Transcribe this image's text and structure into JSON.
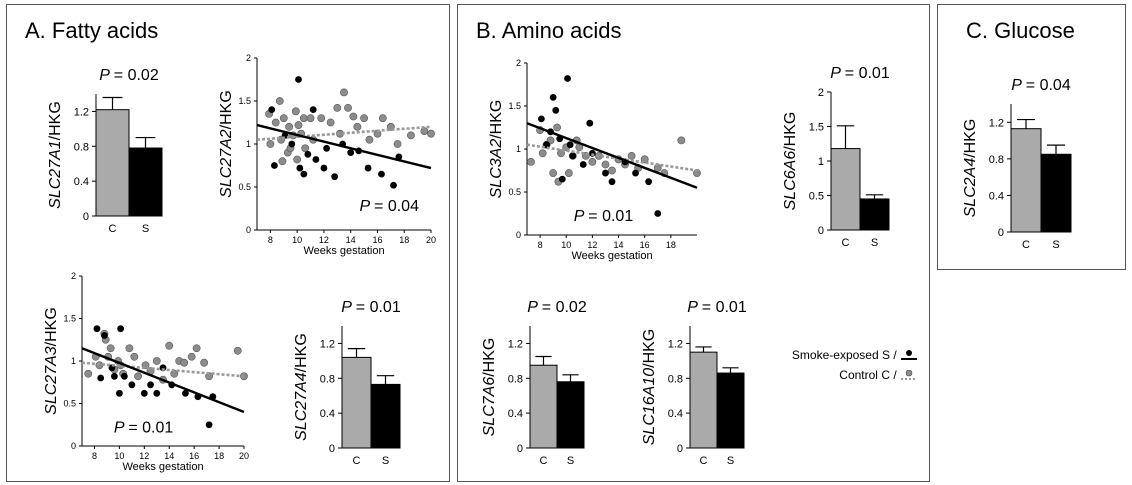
{
  "panels": [
    {
      "letter": "A.",
      "title": "Fatty acids"
    },
    {
      "letter": "B.",
      "title": "Amino acids"
    },
    {
      "letter": "C.",
      "title": "Glucose"
    }
  ],
  "colors": {
    "control": "#aaaaaa",
    "smoke": "#000000",
    "control_point": "#8c8c8c",
    "smoke_point": "#000000",
    "trend_control": "#999999"
  },
  "legend": {
    "smoke": "Smoke-exposed",
    "smoke_code": "S /",
    "control": "Control",
    "control_code": "C /"
  },
  "chart_data": [
    {
      "id": "slc27a1",
      "type": "bar",
      "gene": "SLC27A1",
      "ylabel_suffix": "/HKG",
      "p_label": "P",
      "p_value": "= 0.02",
      "categories": [
        "C",
        "S"
      ],
      "values": [
        1.22,
        0.78
      ],
      "errors": [
        0.14,
        0.12
      ],
      "ylim": [
        0,
        1.4
      ],
      "yticks": [
        0,
        0.4,
        0.8,
        1.2
      ],
      "ytick_labels": [
        "0",
        "0.4",
        "0.8",
        "1.2"
      ]
    },
    {
      "id": "slc27a2",
      "type": "scatter",
      "gene": "SLC27A2",
      "ylabel_suffix": "/HKG",
      "p_label": "P",
      "p_value": "= 0.04",
      "xlabel": "Weeks gestation",
      "xlim": [
        7,
        20
      ],
      "ylim": [
        0,
        2
      ],
      "xticks": [
        8,
        10,
        12,
        14,
        16,
        18,
        20
      ],
      "yticks": [
        0,
        0.5,
        1,
        1.5,
        2
      ],
      "xtick_labels": [
        "8",
        "10",
        "12",
        "14",
        "16",
        "18",
        "20"
      ],
      "ytick_labels": [
        "0",
        "0.5",
        "1",
        "1.5",
        "2"
      ],
      "series": [
        {
          "points": [
            [
              7.9,
              1.35
            ],
            [
              8.0,
              1.0
            ],
            [
              8.4,
              1.25
            ],
            [
              8.7,
              1.5
            ],
            [
              8.8,
              1.05
            ],
            [
              8.9,
              0.8
            ],
            [
              9.0,
              1.3
            ],
            [
              9.3,
              0.9
            ],
            [
              9.4,
              1.2
            ],
            [
              9.5,
              0.95
            ],
            [
              9.7,
              1.1
            ],
            [
              9.9,
              1.38
            ],
            [
              10.0,
              0.82
            ],
            [
              10.1,
              1.22
            ],
            [
              10.3,
              1.12
            ],
            [
              10.5,
              1.3
            ],
            [
              10.6,
              0.95
            ],
            [
              11.0,
              1.3
            ],
            [
              11.2,
              1.05
            ],
            [
              11.8,
              1.3
            ],
            [
              12.5,
              1.25
            ],
            [
              13.0,
              1.42
            ],
            [
              13.2,
              1.12
            ],
            [
              13.5,
              1.6
            ],
            [
              13.8,
              1.42
            ],
            [
              14.2,
              1.32
            ],
            [
              14.5,
              1.2
            ],
            [
              15.0,
              1.3
            ],
            [
              15.4,
              1.05
            ],
            [
              16.0,
              1.12
            ],
            [
              16.4,
              1.3
            ],
            [
              17.0,
              1.2
            ],
            [
              17.5,
              1.0
            ],
            [
              18.5,
              1.1
            ],
            [
              19.5,
              1.15
            ],
            [
              20.0,
              1.12
            ]
          ]
        },
        {
          "points": [
            [
              8.1,
              1.4
            ],
            [
              8.3,
              0.75
            ],
            [
              9.1,
              1.1
            ],
            [
              9.6,
              1.0
            ],
            [
              10.1,
              1.75
            ],
            [
              10.2,
              0.72
            ],
            [
              10.5,
              0.65
            ],
            [
              10.8,
              0.88
            ],
            [
              11.2,
              1.4
            ],
            [
              11.4,
              0.82
            ],
            [
              12.0,
              0.72
            ],
            [
              12.2,
              0.95
            ],
            [
              12.8,
              0.62
            ],
            [
              13.4,
              1.0
            ],
            [
              14.0,
              0.9
            ],
            [
              14.6,
              0.92
            ],
            [
              15.3,
              0.72
            ],
            [
              16.3,
              0.65
            ],
            [
              17.2,
              0.52
            ],
            [
              17.6,
              0.85
            ]
          ]
        }
      ],
      "trend_control": [
        [
          7,
          1.05
        ],
        [
          20,
          1.2
        ]
      ],
      "trend_smoke": [
        [
          7,
          1.22
        ],
        [
          20,
          0.72
        ]
      ]
    },
    {
      "id": "slc27a3",
      "type": "scatter",
      "gene": "SLC27A3",
      "ylabel_suffix": "/HKG",
      "p_label": "P",
      "p_value": "= 0.01",
      "xlabel": "Weeks gestation",
      "xlim": [
        7,
        20
      ],
      "ylim": [
        0,
        2
      ],
      "xticks": [
        8,
        10,
        12,
        14,
        16,
        18,
        20
      ],
      "yticks": [
        0,
        0.5,
        1,
        1.5,
        2
      ],
      "xtick_labels": [
        "8",
        "10",
        "12",
        "14",
        "16",
        "18",
        "20"
      ],
      "ytick_labels": [
        "0",
        "0.5",
        "1",
        "1.5",
        "2"
      ],
      "series": [
        {
          "points": [
            [
              7.5,
              0.85
            ],
            [
              8.1,
              1.05
            ],
            [
              8.4,
              0.95
            ],
            [
              8.8,
              1.32
            ],
            [
              8.9,
              1.25
            ],
            [
              9.1,
              1.05
            ],
            [
              9.3,
              1.15
            ],
            [
              9.6,
              0.9
            ],
            [
              9.9,
              1.0
            ],
            [
              10.1,
              0.95
            ],
            [
              10.3,
              0.85
            ],
            [
              10.8,
              1.15
            ],
            [
              11.2,
              1.05
            ],
            [
              11.5,
              0.82
            ],
            [
              12.1,
              0.95
            ],
            [
              12.5,
              0.88
            ],
            [
              13.0,
              1.0
            ],
            [
              13.5,
              0.78
            ],
            [
              14.0,
              1.18
            ],
            [
              14.4,
              0.85
            ],
            [
              14.8,
              1.0
            ],
            [
              15.2,
              0.98
            ],
            [
              15.8,
              1.05
            ],
            [
              16.2,
              1.15
            ],
            [
              16.8,
              0.98
            ],
            [
              17.2,
              0.82
            ],
            [
              19.5,
              1.12
            ],
            [
              20.0,
              0.82
            ]
          ]
        },
        {
          "points": [
            [
              8.2,
              1.38
            ],
            [
              8.5,
              0.8
            ],
            [
              8.8,
              1.3
            ],
            [
              9.4,
              0.92
            ],
            [
              9.6,
              0.82
            ],
            [
              10.0,
              0.62
            ],
            [
              10.1,
              1.38
            ],
            [
              10.4,
              0.82
            ],
            [
              11.0,
              0.72
            ],
            [
              12.0,
              0.62
            ],
            [
              12.5,
              0.72
            ],
            [
              13.0,
              0.62
            ],
            [
              13.5,
              0.92
            ],
            [
              14.2,
              0.72
            ],
            [
              15.3,
              0.62
            ],
            [
              16.3,
              0.58
            ],
            [
              17.2,
              0.25
            ],
            [
              17.5,
              0.58
            ]
          ]
        }
      ],
      "trend_control": [
        [
          7,
          0.98
        ],
        [
          20,
          0.82
        ]
      ],
      "trend_smoke": [
        [
          7,
          1.15
        ],
        [
          20,
          0.4
        ]
      ]
    },
    {
      "id": "slc27a4",
      "type": "bar",
      "gene": "SLC27A4",
      "ylabel_suffix": "/HKG",
      "p_label": "P",
      "p_value": "= 0.01",
      "categories": [
        "C",
        "S"
      ],
      "values": [
        1.04,
        0.73
      ],
      "errors": [
        0.1,
        0.1
      ],
      "ylim": [
        0,
        1.4
      ],
      "yticks": [
        0,
        0.4,
        0.8,
        1.2
      ],
      "ytick_labels": [
        "0",
        "0.4",
        "0.8",
        "1.2"
      ]
    },
    {
      "id": "slc3a2",
      "type": "scatter",
      "gene": "SLC3A2",
      "ylabel_suffix": "/HKG",
      "p_label": "P",
      "p_value": "= 0.01",
      "xlabel": "Weeks gestation",
      "xlim": [
        7,
        20
      ],
      "ylim": [
        0,
        2
      ],
      "xticks": [
        8,
        10,
        12,
        14,
        16,
        18
      ],
      "yticks": [
        0,
        0.5,
        1,
        1.5,
        2
      ],
      "xtick_labels": [
        "8",
        "10",
        "12",
        "14",
        "16",
        "18"
      ],
      "ytick_labels": [
        "0",
        "0.5",
        "1",
        "1.5",
        "2"
      ],
      "series": [
        {
          "points": [
            [
              7.3,
              0.85
            ],
            [
              8.0,
              1.22
            ],
            [
              8.2,
              0.95
            ],
            [
              8.5,
              1.05
            ],
            [
              8.8,
              1.1
            ],
            [
              9.0,
              0.72
            ],
            [
              9.3,
              1.25
            ],
            [
              9.4,
              0.62
            ],
            [
              9.6,
              0.95
            ],
            [
              10.0,
              1.02
            ],
            [
              10.2,
              0.72
            ],
            [
              10.5,
              0.92
            ],
            [
              10.8,
              1.1
            ],
            [
              11.0,
              1.02
            ],
            [
              11.5,
              0.92
            ],
            [
              12.0,
              0.85
            ],
            [
              12.5,
              0.92
            ],
            [
              13.0,
              0.82
            ],
            [
              13.5,
              0.75
            ],
            [
              14.0,
              0.88
            ],
            [
              14.5,
              0.82
            ],
            [
              15.0,
              0.92
            ],
            [
              15.5,
              0.78
            ],
            [
              16.0,
              0.88
            ],
            [
              17.0,
              0.78
            ],
            [
              17.5,
              0.72
            ],
            [
              18.8,
              1.1
            ],
            [
              20.0,
              0.72
            ]
          ]
        },
        {
          "points": [
            [
              8.1,
              1.35
            ],
            [
              8.5,
              1.05
            ],
            [
              8.8,
              1.2
            ],
            [
              9.0,
              1.6
            ],
            [
              9.2,
              1.45
            ],
            [
              9.5,
              1.12
            ],
            [
              9.7,
              0.65
            ],
            [
              10.1,
              1.82
            ],
            [
              10.3,
              1.05
            ],
            [
              10.5,
              0.92
            ],
            [
              11.3,
              0.82
            ],
            [
              11.8,
              1.3
            ],
            [
              12.0,
              0.95
            ],
            [
              13.0,
              0.72
            ],
            [
              13.5,
              0.62
            ],
            [
              14.5,
              0.85
            ],
            [
              15.3,
              0.72
            ],
            [
              16.3,
              0.62
            ],
            [
              17.0,
              0.25
            ]
          ]
        }
      ],
      "trend_control": [
        [
          7,
          1.05
        ],
        [
          20,
          0.75
        ]
      ],
      "trend_smoke": [
        [
          7,
          1.3
        ],
        [
          20,
          0.55
        ]
      ]
    },
    {
      "id": "slc6a6",
      "type": "bar",
      "gene": "SLC6A6",
      "ylabel_suffix": "/HKG",
      "p_label": "P",
      "p_value": "= 0.01",
      "categories": [
        "C",
        "S"
      ],
      "values": [
        1.18,
        0.45
      ],
      "errors": [
        0.33,
        0.06
      ],
      "ylim": [
        0,
        2
      ],
      "yticks": [
        0,
        0.5,
        1,
        1.5,
        2
      ],
      "ytick_labels": [
        "0",
        "0.5",
        "1",
        "1.5",
        "2"
      ]
    },
    {
      "id": "slc7a6",
      "type": "bar",
      "gene": "SLC7A6",
      "ylabel_suffix": "/HKG",
      "p_label": "P",
      "p_value": "= 0.02",
      "categories": [
        "C",
        "S"
      ],
      "values": [
        0.95,
        0.76
      ],
      "errors": [
        0.1,
        0.08
      ],
      "ylim": [
        0,
        1.4
      ],
      "yticks": [
        0,
        0.4,
        0.8,
        1.2
      ],
      "ytick_labels": [
        "0",
        "0.4",
        "0.8",
        "1.2"
      ]
    },
    {
      "id": "slc16a10",
      "type": "bar",
      "gene": "SLC16A10",
      "ylabel_suffix": "/HKG",
      "p_label": "P",
      "p_value": "= 0.01",
      "categories": [
        "C",
        "S"
      ],
      "values": [
        1.1,
        0.86
      ],
      "errors": [
        0.06,
        0.06
      ],
      "ylim": [
        0,
        1.4
      ],
      "yticks": [
        0,
        0.4,
        0.8,
        1.2
      ],
      "ytick_labels": [
        "0",
        "0.4",
        "0.8",
        "1.2"
      ]
    },
    {
      "id": "slc2a4",
      "type": "bar",
      "gene": "SLC2A4",
      "ylabel_suffix": "/HKG",
      "p_label": "P",
      "p_value": "= 0.04",
      "categories": [
        "C",
        "S"
      ],
      "values": [
        1.13,
        0.85
      ],
      "errors": [
        0.1,
        0.1
      ],
      "ylim": [
        0,
        1.4
      ],
      "yticks": [
        0,
        0.4,
        0.8,
        1.2
      ],
      "ytick_labels": [
        "0",
        "0.4",
        "0.8",
        "1.2"
      ]
    }
  ]
}
